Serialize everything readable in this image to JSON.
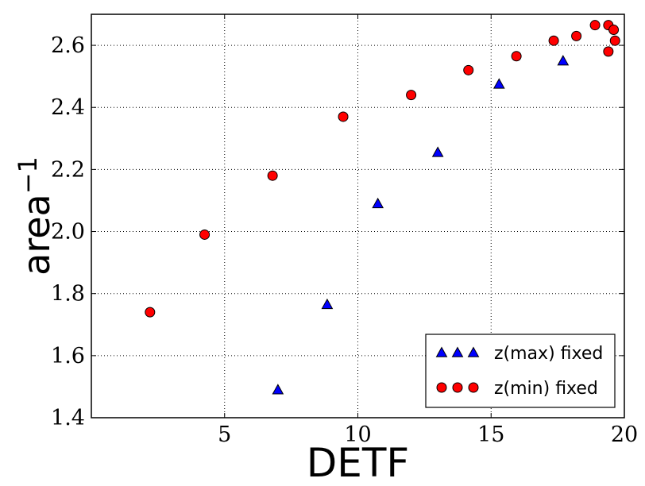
{
  "chart_data": {
    "type": "scatter",
    "title": "",
    "xlabel": "DETF",
    "ylabel": "area",
    "ylabel_superscript": "−1",
    "xlim": [
      0,
      20
    ],
    "ylim": [
      1.4,
      2.7
    ],
    "x_ticks": [
      5,
      10,
      15,
      20
    ],
    "x_tick_labels": [
      "5",
      "10",
      "15",
      "20"
    ],
    "y_ticks": [
      1.4,
      1.6,
      1.8,
      2.0,
      2.2,
      2.4,
      2.6
    ],
    "y_tick_labels": [
      "1.4",
      "1.6",
      "1.8",
      "2.0",
      "2.2",
      "2.4",
      "2.6"
    ],
    "grid": true,
    "legend_position": "bottom-right",
    "series": [
      {
        "name": "z(max) fixed",
        "marker": "triangle",
        "color": "#0000ff",
        "points": [
          {
            "x": 7.0,
            "y": 1.49
          },
          {
            "x": 8.85,
            "y": 1.765
          },
          {
            "x": 10.75,
            "y": 2.09
          },
          {
            "x": 13.0,
            "y": 2.255
          },
          {
            "x": 15.3,
            "y": 2.475
          },
          {
            "x": 17.7,
            "y": 2.55
          }
        ]
      },
      {
        "name": "z(min) fixed",
        "marker": "circle",
        "color": "#ff0000",
        "points": [
          {
            "x": 2.2,
            "y": 1.74
          },
          {
            "x": 4.25,
            "y": 1.99
          },
          {
            "x": 6.8,
            "y": 2.18
          },
          {
            "x": 9.45,
            "y": 2.37
          },
          {
            "x": 12.0,
            "y": 2.44
          },
          {
            "x": 14.15,
            "y": 2.52
          },
          {
            "x": 15.95,
            "y": 2.565
          },
          {
            "x": 17.35,
            "y": 2.615
          },
          {
            "x": 18.2,
            "y": 2.63
          },
          {
            "x": 18.9,
            "y": 2.665
          },
          {
            "x": 19.4,
            "y": 2.665
          },
          {
            "x": 19.6,
            "y": 2.65
          },
          {
            "x": 19.65,
            "y": 2.615
          },
          {
            "x": 19.4,
            "y": 2.58
          }
        ]
      }
    ]
  }
}
